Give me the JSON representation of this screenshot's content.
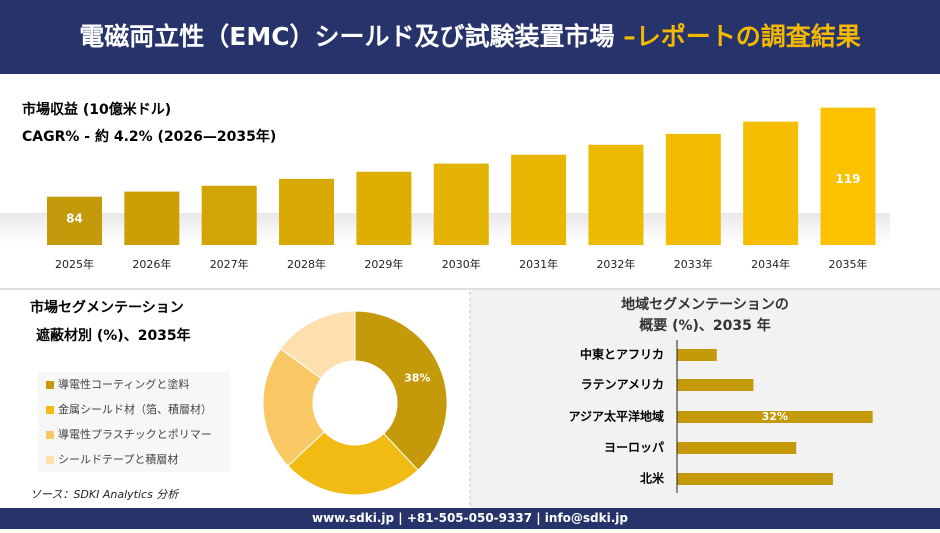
{
  "header": {
    "title": "電磁両立性（EMC）シールド及び試験装置市場 ",
    "title_highlight": "–レポートの調査結果"
  },
  "chart_data": [
    {
      "type": "bar",
      "title": "市場収益 (10億米ドル)",
      "subtitle": "CAGR% - 約 4.2% (2026—2035年)",
      "categories": [
        "2025年",
        "2026年",
        "2027年",
        "2028年",
        "2029年",
        "2030年",
        "2031年",
        "2032年",
        "2033年",
        "2034年",
        "2035年"
      ],
      "values": [
        84,
        86,
        88.3,
        91,
        93.8,
        97,
        100.5,
        104.4,
        108.7,
        113.5,
        119
      ],
      "value_labels": [
        "84",
        null,
        null,
        null,
        null,
        null,
        null,
        null,
        null,
        null,
        "119"
      ],
      "colors": [
        "#c49a0a",
        "#cc9f06",
        "#d2a404",
        "#d8a903",
        "#deae02",
        "#e3b202",
        "#e8b601",
        "#edb901",
        "#f1bc00",
        "#f6be00",
        "#fcc200"
      ],
      "ylim": [
        65,
        125
      ]
    },
    {
      "type": "pie",
      "title": "市場セグメンテーション",
      "subtitle": "遮蔽材別 (%)、2035年",
      "categories": [
        "導電性コーティングと塗料",
        "金属シールド材（箔、積層材）",
        "導電性プラスチックとポリマー",
        "シールドテープと積層材"
      ],
      "values": [
        38,
        25,
        22,
        15
      ],
      "value_labels": [
        "38%",
        null,
        null,
        null
      ],
      "colors": [
        "#c49a0a",
        "#f2bb14",
        "#f9c865",
        "#fde0ae"
      ]
    },
    {
      "type": "hbar",
      "title": "地域セグメンテーションの",
      "subtitle": "概要 (%)、2035 年",
      "categories": [
        "中東とアフリカ",
        "ラテンアメリカ",
        "アジア太平洋地域",
        "ヨーロッパ",
        "北米"
      ],
      "values": [
        6.5,
        12.5,
        32,
        19.5,
        25.5
      ],
      "value_labels": [
        null,
        null,
        "32%",
        null,
        null
      ],
      "color": "#c49a0a",
      "xlim": [
        0,
        35
      ]
    }
  ],
  "source": "ソース：SDKI Analytics 分析",
  "footer": "www.sdki.jp | +81-505-050-9337 | info@sdki.jp"
}
